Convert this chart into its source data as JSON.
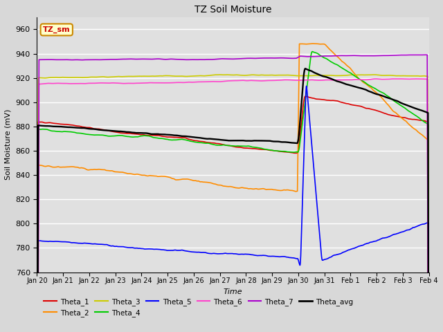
{
  "title": "TZ Soil Moisture",
  "xlabel": "Time",
  "ylabel": "Soil Moisture (mV)",
  "ylim": [
    760,
    970
  ],
  "yticks": [
    760,
    780,
    800,
    820,
    840,
    860,
    880,
    900,
    920,
    940,
    960
  ],
  "bg_color": "#d8d8d8",
  "plot_bg_color": "#e0e0e0",
  "grid_color": "#ffffff",
  "annotation_text": "TZ_sm",
  "annotation_box_color": "#ffffcc",
  "annotation_box_edge": "#cc8800",
  "series_colors": {
    "Theta_1": "#dd0000",
    "Theta_2": "#ff8c00",
    "Theta_3": "#cccc00",
    "Theta_4": "#00cc00",
    "Theta_5": "#0000ff",
    "Theta_6": "#ff44cc",
    "Theta_7": "#aa00cc",
    "Theta_avg": "#000000"
  },
  "x_tick_labels": [
    "Jan 20",
    "Jan 21",
    "Jan 22",
    "Jan 23",
    "Jan 24",
    "Jan 25",
    "Jan 26",
    "Jan 27",
    "Jan 28",
    "Jan 29",
    "Jan 30",
    "Jan 31",
    "Feb 1",
    "Feb 2",
    "Feb 3",
    "Feb 4"
  ]
}
